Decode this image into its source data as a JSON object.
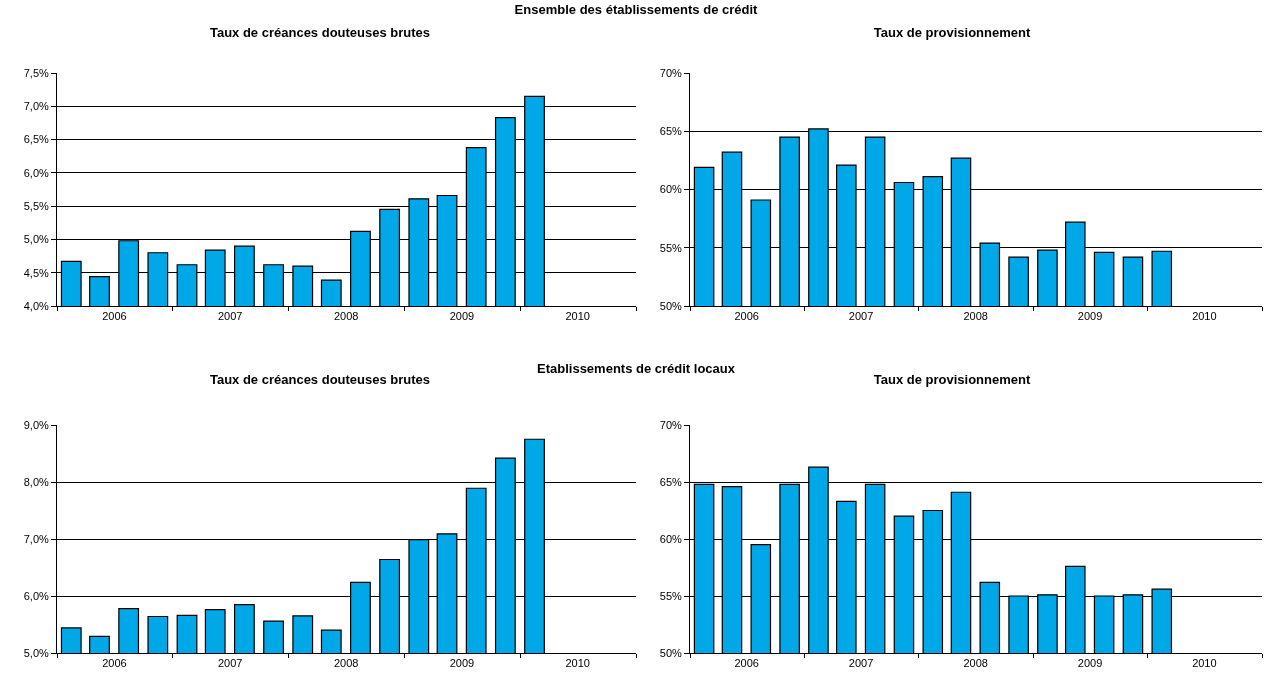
{
  "chart_data": [
    {
      "type": "bar",
      "title": "Taux de créances douteuses brutes",
      "annotations": [
        "Ensemble des établissements de crédit"
      ],
      "color": "#00a8e8",
      "grid": "y",
      "x": [
        "2006-02-15",
        "2006-05-15",
        "2006-08-15",
        "2006-11-15",
        "2007-02-15",
        "2007-05-15",
        "2007-08-15",
        "2007-11-15",
        "2008-02-15",
        "2008-05-15",
        "2008-08-15",
        "2008-11-15",
        "2009-02-15",
        "2009-05-15",
        "2009-08-15",
        "2009-11-15",
        "2010-02-15"
      ],
      "values": [
        4.67,
        4.44,
        4.98,
        4.8,
        4.62,
        4.84,
        4.9,
        4.62,
        4.6,
        4.39,
        5.12,
        5.45,
        5.61,
        5.66,
        6.38,
        6.83,
        7.15
      ],
      "xlim": [
        "2006-01-01",
        "2011-01-01"
      ],
      "xticks": [
        {
          "value": "2006-07-01",
          "label": "2006"
        },
        {
          "value": "2007-07-01",
          "label": "2007"
        },
        {
          "value": "2008-07-01",
          "label": "2008"
        },
        {
          "value": "2009-07-01",
          "label": "2009"
        },
        {
          "value": "2010-07-01",
          "label": "2010"
        }
      ],
      "ylim": [
        4.0,
        7.5
      ],
      "yticks": [
        {
          "value": 4.0,
          "label": "4,0%"
        },
        {
          "value": 4.5,
          "label": "4,5%"
        },
        {
          "value": 5.0,
          "label": "5,0%"
        },
        {
          "value": 5.5,
          "label": "5,5%"
        },
        {
          "value": 6.0,
          "label": "6,0%"
        },
        {
          "value": 6.5,
          "label": "6,5%"
        },
        {
          "value": 7.0,
          "label": "7,0%"
        },
        {
          "value": 7.5,
          "label": "7,5%"
        }
      ]
    },
    {
      "type": "bar",
      "title": "Taux de provisionnement",
      "color": "#00a8e8",
      "grid": "y",
      "x": [
        "2006-02-15",
        "2006-05-15",
        "2006-08-15",
        "2006-11-15",
        "2007-02-15",
        "2007-05-15",
        "2007-08-15",
        "2007-11-15",
        "2008-02-15",
        "2008-05-15",
        "2008-08-15",
        "2008-11-15",
        "2009-02-15",
        "2009-05-15",
        "2009-08-15",
        "2009-11-15",
        "2010-02-15"
      ],
      "values": [
        61.9,
        63.2,
        59.1,
        64.5,
        65.2,
        62.1,
        64.5,
        60.6,
        61.1,
        62.7,
        55.4,
        54.2,
        54.8,
        57.2,
        54.6,
        54.2,
        54.7
      ],
      "xlim": [
        "2006-01-01",
        "2011-01-01"
      ],
      "xticks": [
        {
          "value": "2006-07-01",
          "label": "2006"
        },
        {
          "value": "2007-07-01",
          "label": "2007"
        },
        {
          "value": "2008-07-01",
          "label": "2008"
        },
        {
          "value": "2009-07-01",
          "label": "2009"
        },
        {
          "value": "2010-07-01",
          "label": "2010"
        }
      ],
      "ylim": [
        50,
        70
      ],
      "yticks": [
        {
          "value": 50,
          "label": "50%"
        },
        {
          "value": 55,
          "label": "55%"
        },
        {
          "value": 60,
          "label": "60%"
        },
        {
          "value": 65,
          "label": "65%"
        },
        {
          "value": 70,
          "label": "70%"
        }
      ]
    },
    {
      "type": "bar",
      "title": "Taux de créances douteuses brutes",
      "annotations": [
        "Etablissements de crédit locaux"
      ],
      "color": "#00a8e8",
      "grid": "y",
      "x": [
        "2006-02-15",
        "2006-05-15",
        "2006-08-15",
        "2006-11-15",
        "2007-02-15",
        "2007-05-15",
        "2007-08-15",
        "2007-11-15",
        "2008-02-15",
        "2008-05-15",
        "2008-08-15",
        "2008-11-15",
        "2009-02-15",
        "2009-05-15",
        "2009-08-15",
        "2009-11-15",
        "2010-02-15"
      ],
      "values": [
        5.44,
        5.29,
        5.78,
        5.64,
        5.66,
        5.76,
        5.85,
        5.56,
        5.65,
        5.4,
        6.24,
        6.64,
        6.99,
        7.09,
        7.89,
        8.42,
        8.75
      ],
      "xlim": [
        "2006-01-01",
        "2011-01-01"
      ],
      "xticks": [
        {
          "value": "2006-07-01",
          "label": "2006"
        },
        {
          "value": "2007-07-01",
          "label": "2007"
        },
        {
          "value": "2008-07-01",
          "label": "2008"
        },
        {
          "value": "2009-07-01",
          "label": "2009"
        },
        {
          "value": "2010-07-01",
          "label": "2010"
        }
      ],
      "ylim": [
        5.0,
        9.0
      ],
      "yticks": [
        {
          "value": 5.0,
          "label": "5,0%"
        },
        {
          "value": 6.0,
          "label": "6,0%"
        },
        {
          "value": 7.0,
          "label": "7,0%"
        },
        {
          "value": 8.0,
          "label": "8,0%"
        },
        {
          "value": 9.0,
          "label": "9,0%"
        }
      ]
    },
    {
      "type": "bar",
      "title": "Taux de provisionnement",
      "color": "#00a8e8",
      "grid": "y",
      "x": [
        "2006-02-15",
        "2006-05-15",
        "2006-08-15",
        "2006-11-15",
        "2007-02-15",
        "2007-05-15",
        "2007-08-15",
        "2007-11-15",
        "2008-02-15",
        "2008-05-15",
        "2008-08-15",
        "2008-11-15",
        "2009-02-15",
        "2009-05-15",
        "2009-08-15",
        "2009-11-15",
        "2010-02-15"
      ],
      "values": [
        64.8,
        64.6,
        59.5,
        64.8,
        66.3,
        63.3,
        64.8,
        62.0,
        62.5,
        64.1,
        56.2,
        55.0,
        55.1,
        57.6,
        55.0,
        55.1,
        55.6
      ],
      "xlim": [
        "2006-01-01",
        "2011-01-01"
      ],
      "xticks": [
        {
          "value": "2006-07-01",
          "label": "2006"
        },
        {
          "value": "2007-07-01",
          "label": "2007"
        },
        {
          "value": "2008-07-01",
          "label": "2008"
        },
        {
          "value": "2009-07-01",
          "label": "2009"
        },
        {
          "value": "2010-07-01",
          "label": "2010"
        }
      ],
      "ylim": [
        50,
        70
      ],
      "yticks": [
        {
          "value": 50,
          "label": "50%"
        },
        {
          "value": 55,
          "label": "55%"
        },
        {
          "value": 60,
          "label": "60%"
        },
        {
          "value": 65,
          "label": "65%"
        },
        {
          "value": 70,
          "label": "70%"
        }
      ]
    }
  ]
}
